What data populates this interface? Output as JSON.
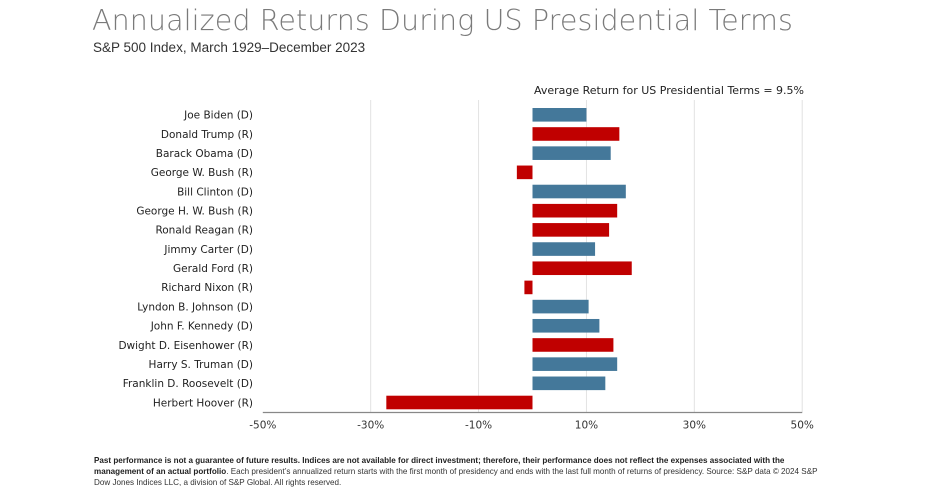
{
  "header": {
    "title": "Annualized Returns During US Presidential Terms",
    "subtitle": "S&P 500 Index, March 1929–December 2023"
  },
  "annotation": "Average Return for US Presidential Terms = 9.5%",
  "colors": {
    "democrat": "#44789A",
    "republican": "#C00000",
    "gridline": "#e2e2e2",
    "axis": "#888888"
  },
  "chart_data": {
    "type": "bar",
    "orientation": "horizontal",
    "title": "Annualized Returns During US Presidential Terms",
    "subtitle": "S&P 500 Index, March 1929–December 2023",
    "xlabel": "",
    "ylabel": "",
    "xlim": [
      -50,
      50
    ],
    "x_ticks": [
      -50,
      -30,
      -10,
      10,
      30,
      50
    ],
    "x_tick_labels": [
      "-50%",
      "-30%",
      "-10%",
      "10%",
      "30%",
      "50%"
    ],
    "grid": "vertical",
    "legend": "none",
    "annotations": [
      "Average Return for US Presidential Terms = 9.5%"
    ],
    "categories": [
      "Joe Biden (D)",
      "Donald Trump (R)",
      "Barack Obama (D)",
      "George W. Bush (R)",
      "Bill Clinton (D)",
      "George H. W. Bush (R)",
      "Ronald Reagan (R)",
      "Jimmy Carter (D)",
      "Gerald Ford (R)",
      "Richard Nixon (R)",
      "Lyndon B. Johnson (D)",
      "John F. Kennedy (D)",
      "Dwight D. Eisenhower (R)",
      "Harry S. Truman (D)",
      "Franklin D. Roosevelt (D)",
      "Herbert Hoover (R)"
    ],
    "party": [
      "D",
      "R",
      "D",
      "R",
      "D",
      "R",
      "R",
      "D",
      "R",
      "R",
      "D",
      "D",
      "R",
      "D",
      "D",
      "R"
    ],
    "values": [
      10.0,
      16.1,
      14.5,
      -2.9,
      17.3,
      15.7,
      14.2,
      11.6,
      18.4,
      -1.5,
      10.4,
      12.4,
      15.0,
      15.7,
      13.5,
      -27.1
    ],
    "units": "%"
  },
  "footer": {
    "bold": "Past performance is not a guarantee of future results. Indices are not available for direct investment; therefore, their performance does not reflect the expenses associated with the management of an actual portfolio",
    "normal": ". Each president’s annualized return starts with the first month of presidency and ends with the last full month of returns of presidency. Source: S&P data © 2024 S&P Dow Jones Indices LLC, a division of S&P Global. All rights reserved."
  }
}
